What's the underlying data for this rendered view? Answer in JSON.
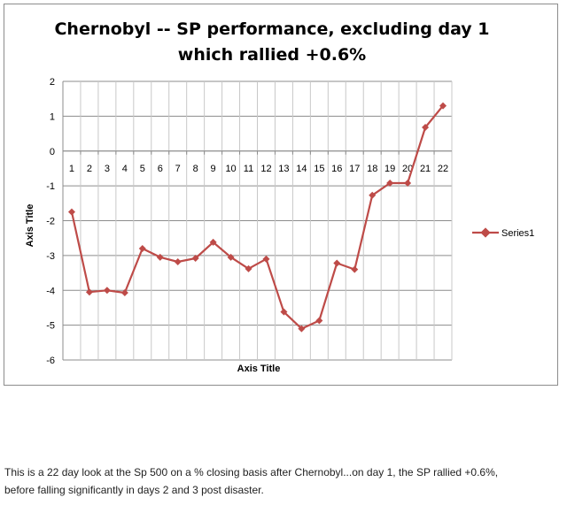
{
  "chart_data": {
    "type": "line",
    "title_lines": [
      "Chernobyl -- SP performance, excluding day 1",
      "which rallied +0.6%"
    ],
    "xlabel": "Axis Title",
    "ylabel": "Axis Title",
    "categories": [
      "1",
      "2",
      "3",
      "4",
      "5",
      "6",
      "7",
      "8",
      "9",
      "10",
      "11",
      "12",
      "13",
      "14",
      "15",
      "16",
      "17",
      "18",
      "19",
      "20",
      "21",
      "22"
    ],
    "yticks": [
      2,
      1,
      0,
      -1,
      -2,
      -3,
      -4,
      -5,
      -6
    ],
    "ylim": [
      -6,
      2
    ],
    "grid": true,
    "legend_position": "right",
    "series": [
      {
        "name": "Series1",
        "color": "#be4b48",
        "values": [
          -1.75,
          -4.05,
          -4.0,
          -4.07,
          -2.8,
          -3.05,
          -3.18,
          -3.08,
          -2.62,
          -3.05,
          -3.38,
          -3.1,
          -4.62,
          -5.1,
          -4.87,
          -3.22,
          -3.4,
          -1.27,
          -0.92,
          -0.92,
          0.68,
          1.3
        ]
      }
    ]
  },
  "caption": {
    "line1": "This is a 22 day look at the Sp 500 on a % closing basis after Chernobyl...on day 1, the SP rallied +0.6%,",
    "line2": "before falling significantly  in days 2 and 3 post disaster."
  }
}
